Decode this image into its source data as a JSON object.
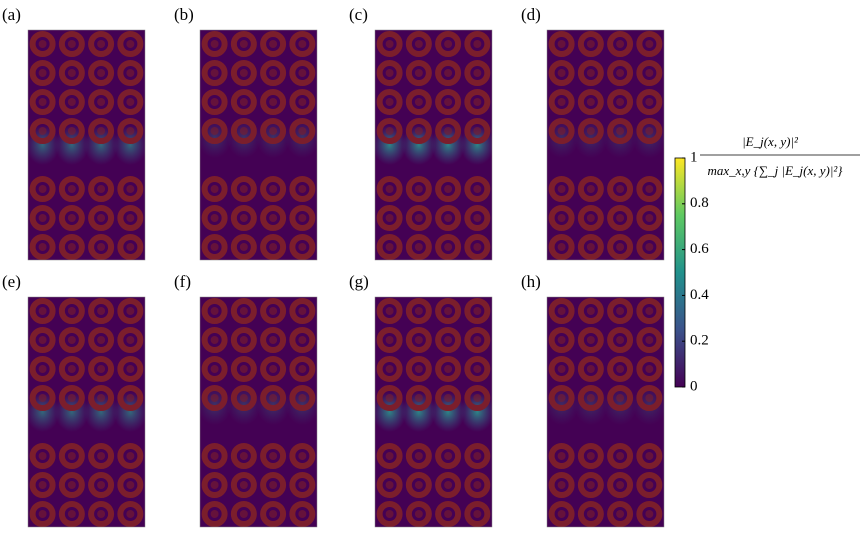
{
  "chart_data": {
    "type": "heatmap",
    "panels": [
      "(a)",
      "(b)",
      "(c)",
      "(d)",
      "(e)",
      "(f)",
      "(g)",
      "(h)"
    ],
    "colorbar_label": {
      "numerator": "|E_j(x, y)|²",
      "denominator": "max_x,y {∑_j |E_j(x, y)|²}"
    },
    "clim": [
      0,
      1
    ],
    "cticks": [
      0,
      0.2,
      0.4,
      0.6,
      0.8,
      1
    ],
    "colormap": [
      "#440154",
      "#3b528b",
      "#21918c",
      "#5ec962",
      "#fde725"
    ]
  }
}
